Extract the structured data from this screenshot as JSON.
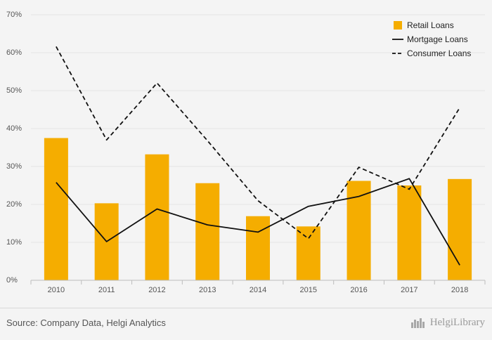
{
  "chart_data": {
    "type": "bar",
    "categories": [
      "2010",
      "2011",
      "2012",
      "2013",
      "2014",
      "2015",
      "2016",
      "2017",
      "2018"
    ],
    "ylim": [
      0,
      70
    ],
    "yticks": [
      0,
      10,
      20,
      30,
      40,
      50,
      60,
      70
    ],
    "ytick_suffix": "%",
    "grid": true,
    "legend_position": "top-right",
    "series": [
      {
        "name": "Retail Loans",
        "type": "bar",
        "color": "#f5ad00",
        "values": [
          37.5,
          20.3,
          33.2,
          25.6,
          16.9,
          14.2,
          26.2,
          25.0,
          26.7
        ]
      },
      {
        "name": "Mortgage Loans",
        "type": "line",
        "style": "solid",
        "color": "#111111",
        "values": [
          25.8,
          10.2,
          18.8,
          14.6,
          12.7,
          19.5,
          22.1,
          26.8,
          4.0
        ]
      },
      {
        "name": "Consumer Loans",
        "type": "line",
        "style": "dashed",
        "color": "#111111",
        "values": [
          61.6,
          37.0,
          52.0,
          36.8,
          21.0,
          11.0,
          29.8,
          24.0,
          45.5
        ]
      }
    ]
  },
  "footer": {
    "source": "Source: Company Data, Helgi Analytics",
    "brand": "HelgiLibrary",
    "brand_icon": "helgi-logo-icon"
  }
}
